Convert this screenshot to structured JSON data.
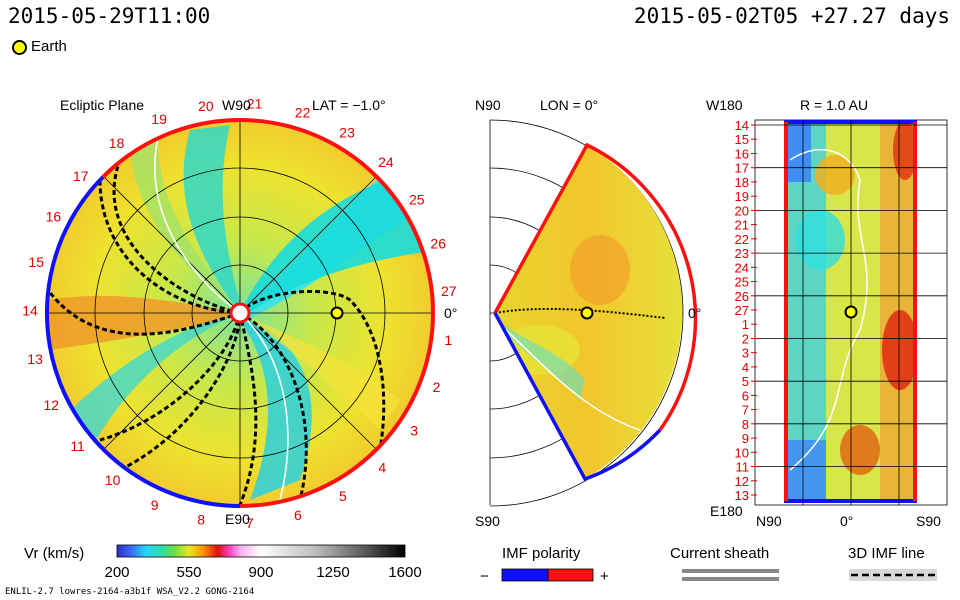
{
  "header": {
    "left_time": "2015-05-29T11:00",
    "right_time": "2015-05-02T05 +27.27 days",
    "legend_earth": "Earth"
  },
  "colors": {
    "earth": "#ffff00",
    "sector_pos": "#ff0000",
    "sector_neg": "#0000ff",
    "tick_red": "#e00000"
  },
  "chart_data": [
    {
      "type": "heatmap",
      "panel": "ecliptic",
      "title": "Ecliptic Plane",
      "lat_label": "LAT = −1.0°",
      "top_label": "W90",
      "bottom_label": "E90",
      "right_label": "0°",
      "carrington_labels": [
        "1",
        "2",
        "3",
        "4",
        "5",
        "6",
        "7",
        "8",
        "9",
        "10",
        "11",
        "12",
        "13",
        "14",
        "15",
        "16",
        "17",
        "18",
        "19",
        "20",
        "21",
        "22",
        "23",
        "24",
        "25",
        "26",
        "27"
      ],
      "earth_angle_deg": 0,
      "earth_r_au": 1.0
    },
    {
      "type": "heatmap",
      "panel": "meridional",
      "top_label": "N90",
      "title": "LON = 0°",
      "bottom_label": "S90",
      "right_label": "0°",
      "lat_range_deg": [
        -60,
        60
      ]
    },
    {
      "type": "heatmap",
      "panel": "radial",
      "title": "R = 1.0 AU",
      "top_left_label": "W180",
      "bottom_left_label": "E180",
      "x_labels": [
        "N90",
        "0°",
        "S90"
      ],
      "y_labels": [
        "14",
        "15",
        "16",
        "17",
        "18",
        "19",
        "20",
        "21",
        "22",
        "23",
        "24",
        "25",
        "26",
        "27",
        "1",
        "2",
        "3",
        "4",
        "5",
        "6",
        "7",
        "8",
        "9",
        "10",
        "11",
        "12",
        "13"
      ]
    }
  ],
  "colorbar": {
    "label": "Vr (km/s)",
    "ticks": [
      "200",
      "550",
      "900",
      "1250",
      "1600"
    ],
    "range": [
      200,
      1600
    ]
  },
  "legends": {
    "imf_polarity": "IMF polarity",
    "minus": "−",
    "plus": "+",
    "current_sheath": "Current sheath",
    "imf_line": "3D IMF line"
  },
  "footer": {
    "run_info": "ENLIL-2.7 lowres-2164-a3b1f WSA_V2.2 GONG-2164"
  }
}
